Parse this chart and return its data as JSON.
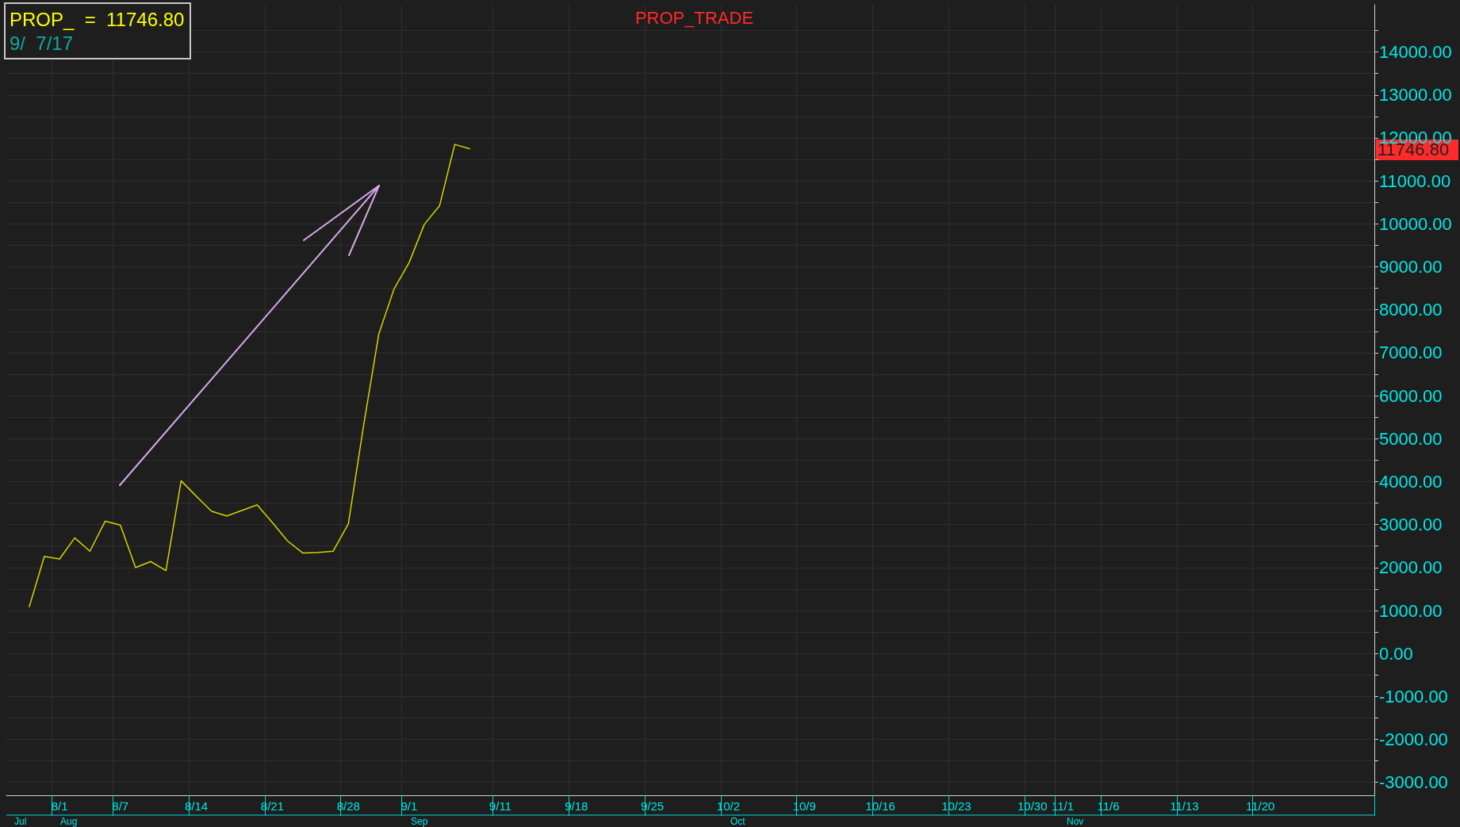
{
  "chart_data": {
    "type": "line",
    "title": "PROP_TRADE",
    "categories": [
      null,
      null,
      null,
      "8/1",
      null,
      null,
      null,
      "8/7",
      null,
      null,
      null,
      null,
      "8/14",
      null,
      null,
      null,
      null,
      "8/21",
      null,
      null,
      null,
      null,
      "8/28",
      null,
      null,
      null,
      "9/1",
      null,
      null,
      null,
      null,
      null,
      "9/11",
      null,
      null,
      null,
      null,
      "9/18",
      null,
      null,
      null,
      null,
      "9/25",
      null,
      null,
      null,
      null,
      "10/2",
      null,
      null,
      null,
      null,
      "10/9",
      null,
      null,
      null,
      null,
      "10/16",
      null,
      null,
      null,
      null,
      "10/23",
      null,
      null,
      null,
      null,
      "10/30",
      null,
      "11/1",
      null,
      null,
      "11/6",
      null,
      null,
      null,
      null,
      "11/13",
      null,
      null,
      null,
      null,
      "11/20",
      null,
      null,
      null,
      null,
      null,
      null,
      null
    ],
    "series": [
      {
        "color": "#d4d400",
        "values": [
          null,
          1080,
          2260,
          2200,
          2690,
          2380,
          3080,
          2990,
          2000,
          2140,
          1930,
          4020,
          3660,
          3310,
          3200,
          3330,
          3460,
          3050,
          2620,
          2340,
          2350,
          2380,
          3020,
          5300,
          7430,
          8480,
          9100,
          9990,
          10420,
          11850,
          11746.8,
          null,
          null,
          null,
          null,
          null,
          null,
          null,
          null,
          null,
          null,
          null,
          null,
          null,
          null,
          null,
          null,
          null,
          null,
          null,
          null,
          null,
          null,
          null,
          null,
          null,
          null,
          null,
          null,
          null,
          null,
          null,
          null,
          null,
          null,
          null,
          null,
          null,
          null,
          null,
          null,
          null,
          null,
          null,
          null,
          null,
          null,
          null,
          null,
          null,
          null,
          null,
          null,
          null,
          null,
          null,
          null,
          null,
          null,
          null
        ]
      }
    ],
    "ylim": [
      -3300,
      15100
    ],
    "yticks": [
      {
        "value": -3000,
        "label": "-3000.00"
      },
      {
        "value": -2500,
        "label": null
      },
      {
        "value": -2000,
        "label": "-2000.00"
      },
      {
        "value": -1500,
        "label": null
      },
      {
        "value": -1000,
        "label": "-1000.00"
      },
      {
        "value": -500,
        "label": null
      },
      {
        "value": 0,
        "label": "0.00"
      },
      {
        "value": 500,
        "label": null
      },
      {
        "value": 1000,
        "label": "1000.00"
      },
      {
        "value": 1500,
        "label": null
      },
      {
        "value": 2000,
        "label": "2000.00"
      },
      {
        "value": 2500,
        "label": null
      },
      {
        "value": 3000,
        "label": "3000.00"
      },
      {
        "value": 3500,
        "label": null
      },
      {
        "value": 4000,
        "label": "4000.00"
      },
      {
        "value": 4500,
        "label": null
      },
      {
        "value": 5000,
        "label": "5000.00"
      },
      {
        "value": 5500,
        "label": null
      },
      {
        "value": 6000,
        "label": "6000.00"
      },
      {
        "value": 6500,
        "label": null
      },
      {
        "value": 7000,
        "label": "7000.00"
      },
      {
        "value": 7500,
        "label": null
      },
      {
        "value": 8000,
        "label": "8000.00"
      },
      {
        "value": 8500,
        "label": null
      },
      {
        "value": 9000,
        "label": "9000.00"
      },
      {
        "value": 9500,
        "label": null
      },
      {
        "value": 10000,
        "label": "10000.00"
      },
      {
        "value": 10500,
        "label": null
      },
      {
        "value": 11000,
        "label": "11000.00"
      },
      {
        "value": 11500,
        "label": null
      },
      {
        "value": 12000,
        "label": "12000.00"
      },
      {
        "value": 12500,
        "label": null
      },
      {
        "value": 13000,
        "label": "13000.00"
      },
      {
        "value": 13500,
        "label": null
      },
      {
        "value": 14000,
        "label": "14000.00"
      },
      {
        "value": 14500,
        "label": null
      }
    ],
    "grid": true,
    "marker": "none",
    "annotations": [
      "PROP_  =  11746.80",
      "9/  7/17",
      "11746.80",
      "Jul",
      "Aug",
      "Sep",
      "Oct",
      "Nov"
    ]
  }
}
